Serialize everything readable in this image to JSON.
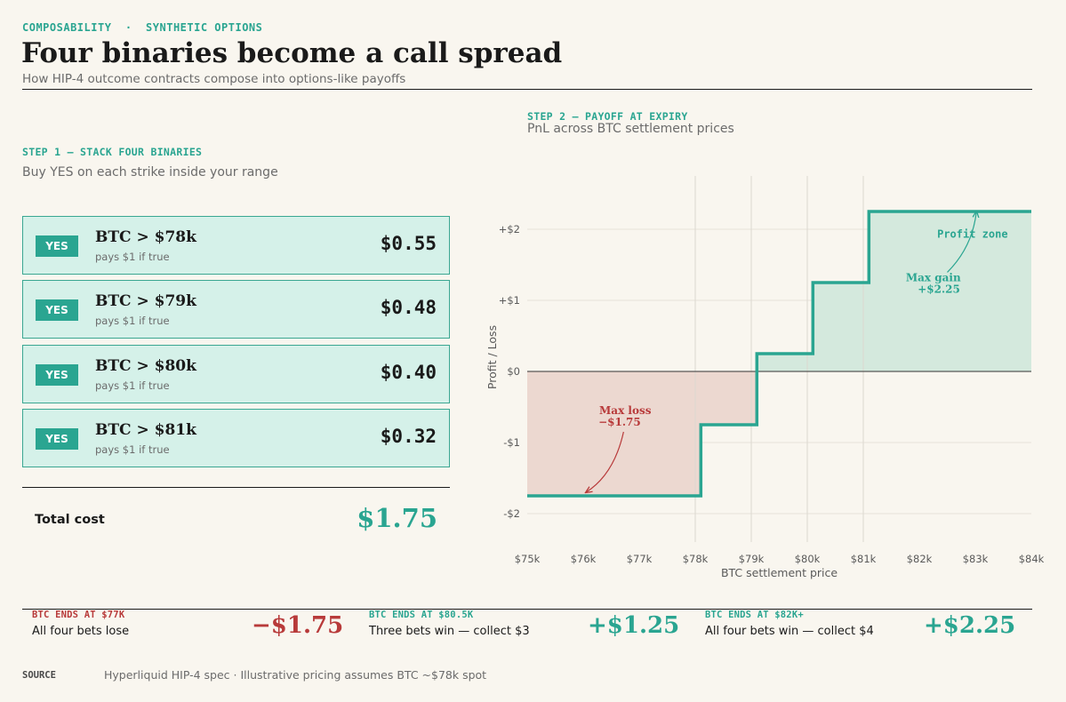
{
  "header": {
    "kicker": "COMPOSABILITY  ·  SYNTHETIC OPTIONS",
    "title": "Four binaries become a call spread",
    "subtitle": "How HIP-4 outcome contracts compose into options-like payoffs"
  },
  "step1": {
    "label": "STEP 1 — STACK FOUR BINARIES",
    "desc": "Buy YES on each strike inside your range",
    "cards": [
      {
        "badge": "YES",
        "title": "BTC > $78k",
        "sub": "pays $1 if true",
        "price": "$0.55"
      },
      {
        "badge": "YES",
        "title": "BTC > $79k",
        "sub": "pays $1 if true",
        "price": "$0.48"
      },
      {
        "badge": "YES",
        "title": "BTC > $80k",
        "sub": "pays $1 if true",
        "price": "$0.40"
      },
      {
        "badge": "YES",
        "title": "BTC > $81k",
        "sub": "pays $1 if true",
        "price": "$0.32"
      }
    ],
    "total_label": "Total cost",
    "total_value": "$1.75"
  },
  "step2": {
    "label": "STEP 2 — PAYOFF AT EXPIRY",
    "desc": "PnL across BTC settlement prices"
  },
  "chart_data": {
    "type": "line",
    "xlabel": "BTC settlement price",
    "ylabel": "Profit / Loss",
    "xlim": [
      75,
      84
    ],
    "ylim": [
      -2.4,
      2.75
    ],
    "x_ticks": [
      {
        "v": 75,
        "label": "$75k"
      },
      {
        "v": 76,
        "label": "$76k"
      },
      {
        "v": 77,
        "label": "$77k"
      },
      {
        "v": 78,
        "label": "$78k"
      },
      {
        "v": 79,
        "label": "$79k"
      },
      {
        "v": 80,
        "label": "$80k"
      },
      {
        "v": 81,
        "label": "$81k"
      },
      {
        "v": 82,
        "label": "$82k"
      },
      {
        "v": 83,
        "label": "$83k"
      },
      {
        "v": 84,
        "label": "$84k"
      }
    ],
    "y_ticks": [
      {
        "v": 2,
        "label": "+$2"
      },
      {
        "v": 1,
        "label": "+$1"
      },
      {
        "v": 0,
        "label": "$0"
      },
      {
        "v": -1,
        "label": "-$1"
      },
      {
        "v": -2,
        "label": "-$2"
      }
    ],
    "strike_lines": [
      78,
      79,
      80,
      81
    ],
    "series": [
      {
        "values": [
          {
            "x": 75,
            "y": -1.75
          },
          {
            "x": 78.1,
            "y": -1.75
          },
          {
            "x": 78.1,
            "y": -0.75
          },
          {
            "x": 79.1,
            "y": -0.75
          },
          {
            "x": 79.1,
            "y": 0.25
          },
          {
            "x": 80.1,
            "y": 0.25
          },
          {
            "x": 80.1,
            "y": 1.25
          },
          {
            "x": 81.1,
            "y": 1.25
          },
          {
            "x": 81.1,
            "y": 2.25
          },
          {
            "x": 84,
            "y": 2.25
          }
        ]
      }
    ],
    "annotations": {
      "max_loss": {
        "line1": "Max loss",
        "line2": "−$1.75"
      },
      "max_gain": {
        "line1": "Max gain",
        "line2": "+$2.25"
      },
      "profit_zone": "Profit zone"
    },
    "colors": {
      "line": "#2aa591",
      "loss_fill": "#ecd8d0",
      "gain_fill": "#d4e9dd",
      "loss_text": "#b83a3a",
      "gain_text": "#2aa591"
    },
    "grid": true
  },
  "outcomes": [
    {
      "label": "BTC ENDS AT $77K",
      "desc": "All four bets lose",
      "value": "−$1.75"
    },
    {
      "label": "BTC ENDS AT $80.5K",
      "desc": "Three bets win — collect $3",
      "value": "+$1.25"
    },
    {
      "label": "BTC ENDS AT $82K+",
      "desc": "All four bets win — collect $4",
      "value": "+$2.25"
    }
  ],
  "source": {
    "label": "SOURCE",
    "text": "Hyperliquid HIP-4 spec · Illustrative pricing assumes BTC ~$78k spot"
  }
}
